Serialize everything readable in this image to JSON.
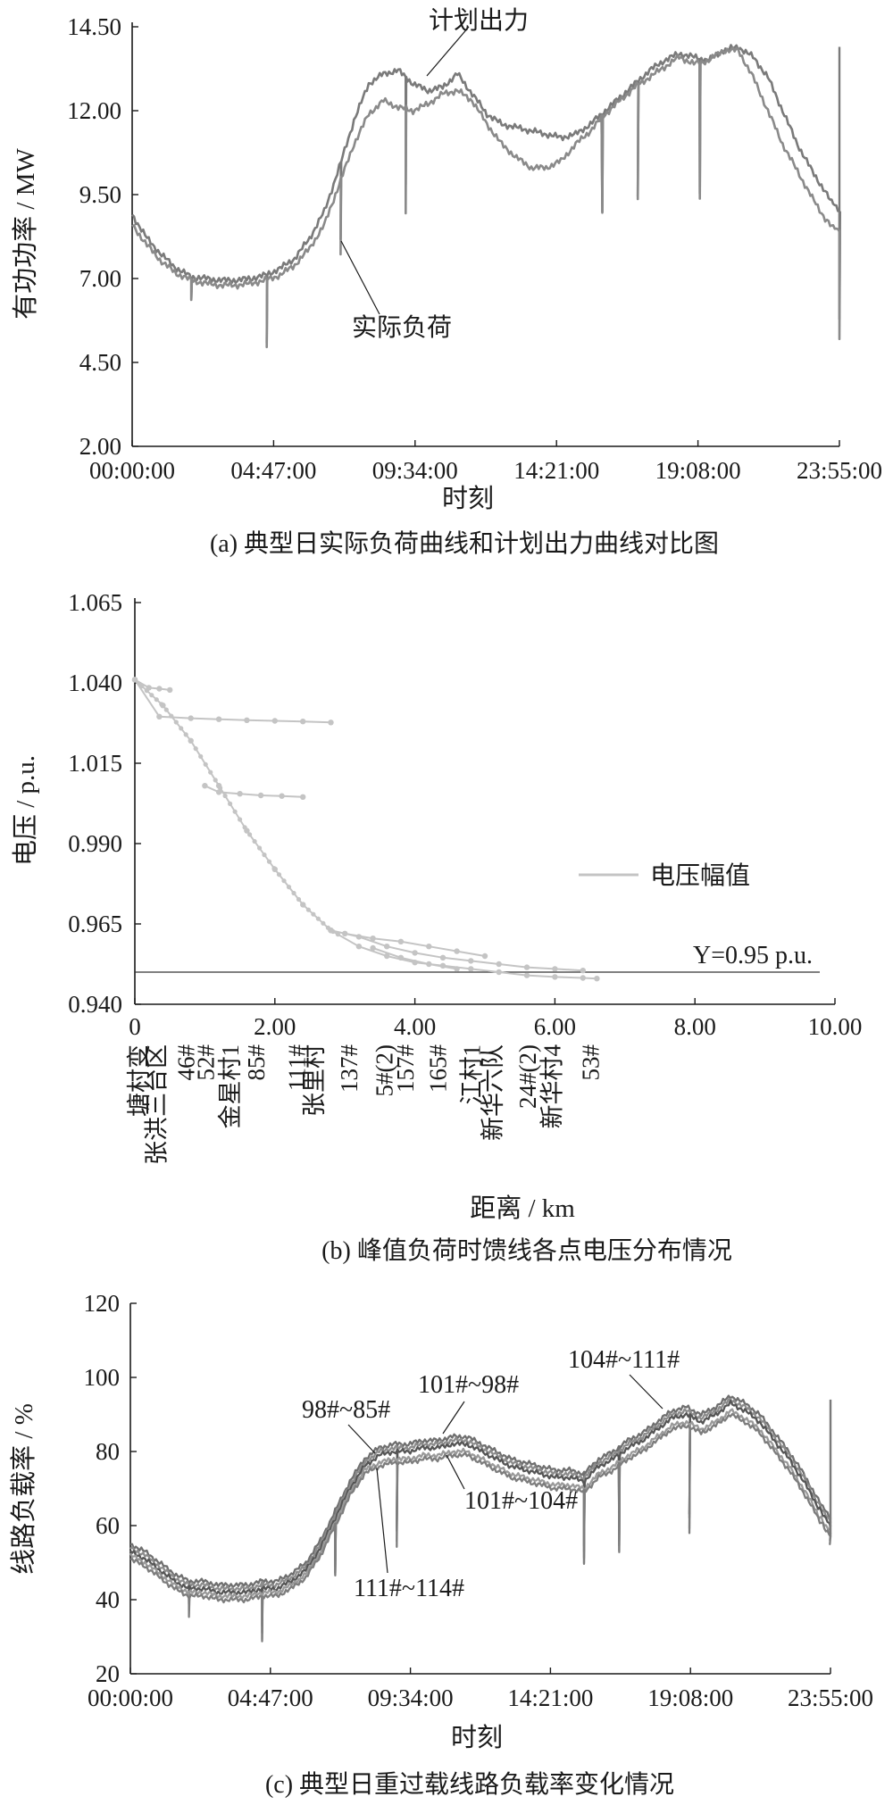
{
  "chart_data": [
    {
      "type": "line",
      "caption": "(a) 典型日实际负荷曲线和计划出力曲线对比图",
      "xlabel": "时刻",
      "ylabel": "有功功率 / MW",
      "ylim": [
        2.0,
        14.5
      ],
      "x_ticks": [
        "00:00:00",
        "04:47:00",
        "09:34:00",
        "14:21:00",
        "19:08:00",
        "23:55:00"
      ],
      "y_ticks": [
        "2.00",
        "4.50",
        "7.00",
        "9.50",
        "12.00",
        "14.50"
      ],
      "grid": false,
      "series": [
        {
          "name": "计划出力",
          "x": [
            0,
            0.5,
            1,
            1.5,
            2,
            2.5,
            3,
            3.5,
            4,
            4.5,
            5,
            5.5,
            6,
            6.5,
            7,
            7.5,
            8,
            8.5,
            9,
            9.5,
            10,
            10.5,
            11,
            11.5,
            12,
            12.5,
            13,
            13.5,
            14,
            14.5,
            15,
            15.5,
            16,
            16.5,
            17,
            17.5,
            18,
            18.5,
            19,
            19.5,
            20,
            20.5,
            21,
            21.5,
            22,
            22.5,
            23,
            23.5,
            23.92
          ],
          "values": [
            8.9,
            8.2,
            7.7,
            7.3,
            7.05,
            7.0,
            6.95,
            6.95,
            7.0,
            7.1,
            7.3,
            7.6,
            8.2,
            9.0,
            10.3,
            11.7,
            12.8,
            13.1,
            13.2,
            12.8,
            12.6,
            12.7,
            13.1,
            12.5,
            11.9,
            11.6,
            11.5,
            11.4,
            11.3,
            11.2,
            11.3,
            11.6,
            12.0,
            12.4,
            12.8,
            13.2,
            13.5,
            13.7,
            13.6,
            13.5,
            13.8,
            13.9,
            13.6,
            13.0,
            12.0,
            11.0,
            10.2,
            9.5,
            9.0
          ],
          "color": "#7a7a7a"
        },
        {
          "name": "实际负荷",
          "x": [
            0,
            0.5,
            1,
            1.5,
            2,
            2.5,
            3,
            3.5,
            4,
            4.5,
            5,
            5.5,
            6,
            6.5,
            7,
            7.5,
            8,
            8.5,
            9,
            9.5,
            10,
            10.5,
            11,
            11.5,
            12,
            12.5,
            13,
            13.5,
            14,
            14.5,
            15,
            15.5,
            16,
            16.5,
            17,
            17.5,
            18,
            18.5,
            19,
            19.5,
            20,
            20.5,
            21,
            21.5,
            22,
            22.5,
            23,
            23.5,
            23.92
          ],
          "values": [
            8.6,
            8.0,
            7.5,
            7.15,
            6.95,
            6.85,
            6.8,
            6.8,
            6.85,
            6.95,
            7.1,
            7.4,
            7.9,
            8.6,
            9.8,
            11.0,
            11.9,
            12.3,
            12.1,
            12.0,
            12.2,
            12.5,
            12.6,
            12.3,
            11.6,
            11.0,
            10.6,
            10.3,
            10.3,
            10.5,
            11.0,
            11.4,
            11.9,
            12.3,
            12.7,
            13.0,
            13.3,
            13.6,
            13.4,
            13.5,
            13.8,
            13.8,
            13.0,
            12.0,
            11.0,
            10.2,
            9.4,
            8.7,
            8.4
          ],
          "color": "#8a8a8a"
        }
      ],
      "annotations": [
        "计划出力",
        "实际负荷"
      ]
    },
    {
      "type": "scatter",
      "caption": "(b) 峰值负荷时馈线各点电压分布情况",
      "xlabel": "距离 / km",
      "ylabel": "电压 / p.u.",
      "xlim": [
        0,
        10.0
      ],
      "ylim": [
        0.94,
        1.065
      ],
      "x_ticks": [
        "0",
        "2.00",
        "4.00",
        "6.00",
        "8.00",
        "10.00"
      ],
      "y_ticks": [
        "0.940",
        "0.965",
        "0.990",
        "1.015",
        "1.040",
        "1.065"
      ],
      "grid": false,
      "legend": {
        "label": "电压幅值",
        "placement": "right"
      },
      "reference_line": {
        "y": 0.95,
        "label": "Y=0.95 p.u."
      },
      "node_labels": [
        "塘村变",
        "张洪三台区",
        "46#",
        "52#",
        "金星村1",
        "85#",
        "111#",
        "张里村",
        "137#",
        "5#(2)",
        "157#",
        "165#",
        "江村1",
        "新华六队",
        "24#(2)",
        "新华村4",
        "53#"
      ],
      "series": [
        {
          "name": "电压幅值",
          "x": [
            0,
            0.4,
            0.8,
            1.2,
            1.6,
            2.0,
            2.4,
            2.8,
            3.2,
            3.6,
            4.0,
            4.4,
            4.8,
            5.2,
            5.6,
            6.0,
            6.4,
            6.6
          ],
          "values": [
            1.041,
            1.033,
            1.022,
            1.008,
            0.994,
            0.982,
            0.971,
            0.963,
            0.958,
            0.955,
            0.953,
            0.952,
            0.951,
            0.95,
            0.949,
            0.9485,
            0.9482,
            0.948
          ],
          "color": "#c4c4c4"
        },
        {
          "name": "branch-upper",
          "x": [
            0,
            0.35,
            0.8,
            1.2,
            1.6,
            2.0,
            2.4,
            2.8
          ],
          "values": [
            1.041,
            1.0295,
            1.029,
            1.0287,
            1.0284,
            1.0282,
            1.028,
            1.0277
          ],
          "color": "#c4c4c4"
        },
        {
          "name": "branch-middle",
          "x": [
            1.0,
            1.2,
            1.5,
            1.8,
            2.1,
            2.4
          ],
          "values": [
            1.008,
            1.006,
            1.0055,
            1.005,
            1.0048,
            1.0045
          ],
          "color": "#c4c4c4"
        },
        {
          "name": "branch-start",
          "x": [
            0,
            0.2,
            0.35,
            0.5
          ],
          "values": [
            1.041,
            1.0385,
            1.0382,
            1.0378
          ],
          "color": "#c4c4c4"
        },
        {
          "name": "branch-lower-a",
          "x": [
            2.8,
            3.2,
            3.6,
            4.0,
            4.4,
            4.8,
            5.2,
            5.6,
            6.0,
            6.4
          ],
          "values": [
            0.963,
            0.961,
            0.958,
            0.956,
            0.9545,
            0.9535,
            0.9525,
            0.9515,
            0.951,
            0.9505
          ],
          "color": "#c4c4c4"
        },
        {
          "name": "branch-lower-b",
          "x": [
            3.0,
            3.4,
            3.8,
            4.2,
            4.6,
            5.0
          ],
          "values": [
            0.962,
            0.9605,
            0.9595,
            0.958,
            0.9565,
            0.955
          ],
          "color": "#c4c4c4"
        },
        {
          "name": "branch-lower-c",
          "x": [
            3.4,
            3.8,
            4.2,
            4.6
          ],
          "values": [
            0.9575,
            0.9545,
            0.9525,
            0.951
          ],
          "color": "#c4c4c4"
        }
      ]
    },
    {
      "type": "line",
      "caption": "(c) 典型日重过载线路负载率变化情况",
      "xlabel": "时刻",
      "ylabel": "线路负载率 / %",
      "ylim": [
        20,
        120
      ],
      "x_ticks": [
        "00:00:00",
        "04:47:00",
        "09:34:00",
        "14:21:00",
        "19:08:00",
        "23:55:00"
      ],
      "y_ticks": [
        "20",
        "40",
        "60",
        "80",
        "100",
        "120"
      ],
      "grid": false,
      "series": [
        {
          "name": "104#~111#",
          "x": [
            0,
            0.5,
            1,
            1.5,
            2,
            2.5,
            3,
            3.5,
            4,
            4.5,
            5,
            5.5,
            6,
            6.5,
            7,
            7.5,
            8,
            8.5,
            9,
            9.5,
            10,
            10.5,
            11,
            11.5,
            12,
            12.5,
            13,
            13.5,
            14,
            14.5,
            15,
            15.5,
            16,
            16.5,
            17,
            17.5,
            18,
            18.5,
            19,
            19.5,
            20,
            20.5,
            21,
            21.5,
            22,
            22.5,
            23,
            23.5,
            23.92
          ],
          "values": [
            55,
            53,
            50,
            47,
            45,
            45,
            44,
            44,
            44,
            45,
            45,
            47,
            50,
            56,
            64,
            72,
            78,
            81,
            82,
            82,
            83,
            83,
            84,
            84,
            82,
            80,
            78,
            77,
            76,
            75,
            75,
            74,
            78,
            80,
            83,
            85,
            88,
            91,
            92,
            90,
            92,
            95,
            93,
            90,
            85,
            80,
            74,
            67,
            62
          ],
          "color": "#6f6f6f"
        },
        {
          "name": "101#~98#",
          "x": [
            0,
            0.5,
            1,
            1.5,
            2,
            2.5,
            3,
            3.5,
            4,
            4.5,
            5,
            5.5,
            6,
            6.5,
            7,
            7.5,
            8,
            8.5,
            9,
            9.5,
            10,
            10.5,
            11,
            11.5,
            12,
            12.5,
            13,
            13.5,
            14,
            14.5,
            15,
            15.5,
            16,
            16.5,
            17,
            17.5,
            18,
            18.5,
            19,
            19.5,
            20,
            20.5,
            21,
            21.5,
            22,
            22.5,
            23,
            23.5,
            23.92
          ],
          "values": [
            54,
            52,
            49,
            46,
            44,
            44,
            43,
            43,
            43,
            44,
            44,
            46,
            49,
            55,
            63,
            71,
            77,
            80,
            81,
            81,
            82,
            82,
            83,
            83,
            81,
            79,
            77,
            76,
            75,
            74,
            74,
            73,
            77,
            79,
            82,
            84,
            87,
            90,
            91,
            89,
            91,
            94,
            92,
            89,
            84,
            79,
            73,
            66,
            61
          ],
          "color": "#8c8c8c"
        },
        {
          "name": "98#~85#",
          "x": [
            0,
            0.5,
            1,
            1.5,
            2,
            2.5,
            3,
            3.5,
            4,
            4.5,
            5,
            5.5,
            6,
            6.5,
            7,
            7.5,
            8,
            8.5,
            9,
            9.5,
            10,
            10.5,
            11,
            11.5,
            12,
            12.5,
            13,
            13.5,
            14,
            14.5,
            15,
            15.5,
            16,
            16.5,
            17,
            17.5,
            18,
            18.5,
            19,
            19.5,
            20,
            20.5,
            21,
            21.5,
            22,
            22.5,
            23,
            23.5,
            23.92
          ],
          "values": [
            53,
            51,
            48,
            45,
            43,
            43,
            42,
            42,
            42,
            43,
            43,
            45,
            48,
            54,
            62,
            70,
            76,
            79,
            80,
            80,
            81,
            81,
            82,
            82,
            80,
            78,
            76,
            75,
            74,
            73,
            73,
            72,
            76,
            78,
            81,
            83,
            86,
            89,
            90,
            88,
            90,
            93,
            91,
            88,
            83,
            78,
            72,
            65,
            60
          ],
          "color": "#555555"
        },
        {
          "name": "101#~104#",
          "x": [
            0,
            0.5,
            1,
            1.5,
            2,
            2.5,
            3,
            3.5,
            4,
            4.5,
            5,
            5.5,
            6,
            6.5,
            7,
            7.5,
            8,
            8.5,
            9,
            9.5,
            10,
            10.5,
            11,
            11.5,
            12,
            12.5,
            13,
            13.5,
            14,
            14.5,
            15,
            15.5,
            16,
            16.5,
            17,
            17.5,
            18,
            18.5,
            19,
            19.5,
            20,
            20.5,
            21,
            21.5,
            22,
            22.5,
            23,
            23.5,
            23.92
          ],
          "values": [
            52,
            50,
            47,
            44,
            42,
            42,
            41,
            41,
            41,
            42,
            42,
            44,
            47,
            53,
            61,
            69,
            75,
            77,
            78,
            78,
            79,
            79,
            80,
            80,
            78,
            76,
            74,
            73,
            72,
            71,
            71,
            70,
            74,
            76,
            79,
            81,
            84,
            87,
            88,
            86,
            88,
            91,
            89,
            86,
            81,
            76,
            70,
            63,
            58
          ],
          "color": "#9a9a9a"
        },
        {
          "name": "111#~114#",
          "x": [
            0,
            0.5,
            1,
            1.5,
            2,
            2.5,
            3,
            3.5,
            4,
            4.5,
            5,
            5.5,
            6,
            6.5,
            7,
            7.5,
            8,
            8.5,
            9,
            9.5,
            10,
            10.5,
            11,
            11.5,
            12,
            12.5,
            13,
            13.5,
            14,
            14.5,
            15,
            15.5,
            16,
            16.5,
            17,
            17.5,
            18,
            18.5,
            19,
            19.5,
            20,
            20.5,
            21,
            21.5,
            22,
            22.5,
            23,
            23.5,
            23.92
          ],
          "values": [
            51,
            49,
            46,
            43,
            41,
            41,
            40,
            40,
            40,
            41,
            41,
            43,
            46,
            52,
            60,
            68,
            74,
            76,
            77,
            77,
            78,
            78,
            79,
            79,
            77,
            75,
            73,
            72,
            71,
            70,
            70,
            69,
            73,
            75,
            78,
            80,
            83,
            86,
            87,
            85,
            87,
            90,
            88,
            85,
            80,
            75,
            69,
            62,
            57
          ],
          "color": "#7d7d7d"
        }
      ],
      "annotations": [
        "104#~111#",
        "101#~98#",
        "98#~85#",
        "101#~104#",
        "111#~114#"
      ]
    }
  ]
}
